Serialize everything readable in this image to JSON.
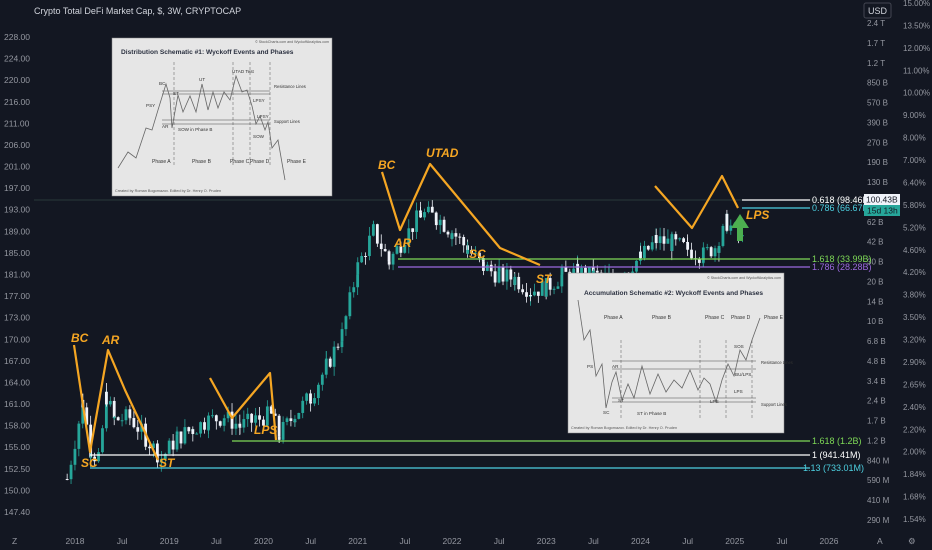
{
  "header": {
    "title": "Crypto Total DeFi Market Cap, $, 3W, CRYPTOCAP",
    "currency_button": "USD"
  },
  "colors": {
    "background": "#131722",
    "up": "#26a69a",
    "down": "#f0f3fa",
    "wyckoff": "#f5a623",
    "fib_green": "#7ed957",
    "fib_purple": "#9c6ade",
    "fib_white": "#ffffff",
    "fib_cyan": "#4dd0e1",
    "arrow_green": "#4caf50"
  },
  "icons": {
    "gear": "gear-icon",
    "timezone": "z-icon",
    "auto": "a-icon"
  },
  "axes": {
    "left_ticks": [
      "228.00",
      "224.00",
      "220.00",
      "216.00",
      "211.00",
      "206.00",
      "201.00",
      "197.00",
      "193.00",
      "189.00",
      "185.00",
      "181.00",
      "177.00",
      "173.00",
      "170.00",
      "167.00",
      "164.00",
      "161.00",
      "158.00",
      "155.00",
      "152.50",
      "150.00",
      "147.40"
    ],
    "right_caps": [
      "2.4 T",
      "1.7 T",
      "1.2 T",
      "850 B",
      "570 B",
      "390 B",
      "270 B",
      "190 B",
      "130 B",
      "90 B",
      "62 B",
      "42 B",
      "30 B",
      "20 B",
      "14 B",
      "10 B",
      "6.8 B",
      "4.8 B",
      "3.4 B",
      "2.4 B",
      "1.7 B",
      "1.2 B",
      "840 M",
      "590 M",
      "410 M",
      "290 M"
    ],
    "right_pcts": [
      "15.00%",
      "13.50%",
      "12.00%",
      "11.00%",
      "10.00%",
      "9.00%",
      "8.00%",
      "7.00%",
      "6.40%",
      "5.80%",
      "5.20%",
      "4.60%",
      "4.20%",
      "3.80%",
      "3.50%",
      "3.20%",
      "2.90%",
      "2.65%",
      "2.40%",
      "2.20%",
      "2.00%",
      "1.84%",
      "1.68%",
      "1.54%"
    ],
    "bottom_ticks": [
      "2018",
      "Jul",
      "2019",
      "Jul",
      "2020",
      "Jul",
      "2021",
      "Jul",
      "2022",
      "Jul",
      "2023",
      "Jul",
      "2024",
      "Jul",
      "2025",
      "Jul",
      "2026"
    ],
    "bottom_left_label": "Z",
    "bottom_right_labels": [
      "A",
      "⚙"
    ]
  },
  "price_tags": {
    "price": "100.43B",
    "countdown": "15d 13h"
  },
  "fib_levels": [
    {
      "label": "0.618 (98.46B)",
      "color": "#ffffff"
    },
    {
      "label": "0.786 (66.67B)",
      "color": "#4dd0e1"
    },
    {
      "label": "1.618 (33.99B)",
      "color": "#7ed957"
    },
    {
      "label": "1.786 (28.28B)",
      "color": "#9c6ade"
    },
    {
      "label": "1.618 (1.2B)",
      "color": "#7ed957"
    },
    {
      "label": "1 (941.41M)",
      "color": "#ffffff"
    },
    {
      "label": "1.13 (733.01M)",
      "color": "#4dd0e1"
    }
  ],
  "wyckoff_labels": {
    "bc1": "BC",
    "ar1": "AR",
    "sc1": "SC",
    "st1": "ST",
    "lps1": "LPS",
    "bc2": "BC",
    "ar2": "AR",
    "utad": "UTAD",
    "sc2": "SC",
    "st2": "ST",
    "lps2": "LPS"
  },
  "inset_distribution": {
    "credit_top": "© StockCharts.com and WyckoffAnalytics.com",
    "title": "Distribution Schematic #1: Wyckoff Events and Phases",
    "events": [
      "BC",
      "PSY",
      "AR",
      "ST",
      "UT",
      "UTAD Test",
      "LPSY",
      "LPSY",
      "SOW in Phase B",
      "SOW"
    ],
    "lines": [
      "Resistance Lines",
      "Support Lines"
    ],
    "phases": [
      "Phase A",
      "Phase B",
      "Phase C",
      "Phase D",
      "Phase E"
    ],
    "credit_bottom": "Created by Roman Bogomazov. Edited by Dr. Henry O. Pruden"
  },
  "inset_accumulation": {
    "credit_top": "© StockCharts.com and WyckoffAnalytics.com",
    "title": "Accumulation Schematic #2: Wyckoff Events and Phases",
    "events": [
      "PS",
      "SC",
      "AR",
      "ST",
      "ST in Phase B",
      "LPS",
      "SOS",
      "BU/LPS",
      "LPS"
    ],
    "lines": [
      "Resistance Lines",
      "Support Lines"
    ],
    "phases": [
      "Phase A",
      "Phase B",
      "Phase C",
      "Phase D",
      "Phase E"
    ],
    "credit_bottom": "Created by Roman Bogomazov. Edited by Dr. Henry O. Pruden"
  },
  "chart_data": {
    "type": "candlestick",
    "title": "Crypto Total DeFi Market Cap, $, 3W, CRYPTOCAP",
    "xlabel": "",
    "ylabel": "",
    "x_range": [
      "2017-11",
      "2026-03"
    ],
    "left_axis_range": [
      147.4,
      228.0
    ],
    "right_axis_scale": "log",
    "right_axis_unit": "USD market cap",
    "right_axis_range": [
      "290 M",
      "2.4 T"
    ],
    "grid": false,
    "series": [
      {
        "type": "ohlc_close_path",
        "points": [
          [
            "2017-12",
            153.0
          ],
          [
            "2018-02",
            166.0
          ],
          [
            "2018-03",
            158.0
          ],
          [
            "2018-04",
            156.0
          ],
          [
            "2018-05",
            167.0
          ],
          [
            "2018-06",
            163.0
          ],
          [
            "2018-08",
            163.5
          ],
          [
            "2018-10",
            160.0
          ],
          [
            "2018-12",
            156.5
          ],
          [
            "2019-02",
            160.0
          ],
          [
            "2019-04",
            161.5
          ],
          [
            "2019-06",
            163.0
          ],
          [
            "2019-08",
            163.5
          ],
          [
            "2019-10",
            162.0
          ],
          [
            "2019-12",
            163.0
          ],
          [
            "2020-02",
            164.0
          ],
          [
            "2020-03",
            160.5
          ],
          [
            "2020-05",
            164.0
          ],
          [
            "2020-07",
            167.0
          ],
          [
            "2020-09",
            172.0
          ],
          [
            "2020-11",
            177.5
          ],
          [
            "2021-01",
            189.0
          ],
          [
            "2021-03",
            195.0
          ],
          [
            "2021-05",
            190.0
          ],
          [
            "2021-07",
            194.0
          ],
          [
            "2021-09",
            198.0
          ],
          [
            "2021-11",
            197.5
          ],
          [
            "2022-01",
            195.0
          ],
          [
            "2022-03",
            192.0
          ],
          [
            "2022-05",
            189.0
          ],
          [
            "2022-07",
            187.5
          ],
          [
            "2022-09",
            187.0
          ],
          [
            "2022-11",
            185.0
          ],
          [
            "2023-01",
            185.5
          ],
          [
            "2023-03",
            187.5
          ],
          [
            "2023-05",
            188.0
          ],
          [
            "2023-07",
            187.5
          ],
          [
            "2023-09",
            187.0
          ],
          [
            "2023-11",
            188.5
          ],
          [
            "2024-01",
            190.5
          ],
          [
            "2024-03",
            193.5
          ],
          [
            "2024-05",
            193.0
          ],
          [
            "2024-07",
            192.0
          ],
          [
            "2024-09",
            191.0
          ],
          [
            "2024-11",
            193.0
          ],
          [
            "2024-12",
            196.5
          ],
          [
            "2025-02",
            193.5
          ]
        ]
      }
    ],
    "annotations": [
      "BC",
      "AR",
      "SC",
      "ST",
      "LPS",
      "BC",
      "AR",
      "UTAD",
      "SC",
      "ST",
      "LPS"
    ],
    "fib_levels": [
      "0.618 (98.46B)",
      "0.786 (66.67B)",
      "1.618 (33.99B)",
      "1.786 (28.28B)",
      "1.618 (1.2B)",
      "1 (941.41M)",
      "1.13 (733.01M)"
    ],
    "last_price": "100.43B"
  }
}
